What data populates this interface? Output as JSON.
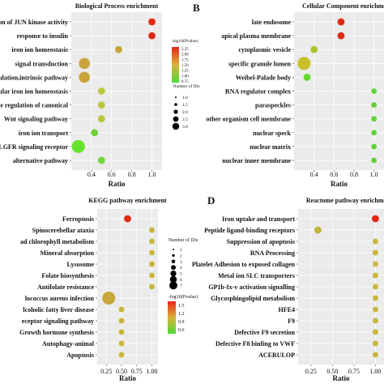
{
  "chart_data": [
    {
      "type": "scatter",
      "panel_letter": "",
      "title": "Biological Process enrichment",
      "xlabel": "Ratio",
      "xlim": [
        0.2,
        1.1
      ],
      "xticks": [
        "0.4",
        "0.6",
        "0.8",
        "1.0"
      ],
      "xtick_values": [
        0.4,
        0.6,
        0.8,
        1.0
      ],
      "categories": [
        "ion of JUN kinase activity",
        "response to insulin",
        "iron ion homeostasis",
        "signal transduction",
        "ulation,intrinsic pathway",
        "ular iron ion homeostasis",
        "e regulation of canonical",
        "Wnt signaling pathway",
        "iron ion transport",
        "LGFR signaling receptor",
        "alternative pathway"
      ],
      "points": [
        {
          "x": 1.0,
          "size": 1,
          "color": "#e02a12"
        },
        {
          "x": 1.0,
          "size": 1,
          "color": "#e02a12"
        },
        {
          "x": 0.67,
          "size": 1,
          "color": "#c8a437"
        },
        {
          "x": 0.33,
          "size": 2,
          "color": "#c9a43a"
        },
        {
          "x": 0.33,
          "size": 2,
          "color": "#c9a43a"
        },
        {
          "x": 0.5,
          "size": 1,
          "color": "#b9c73a"
        },
        {
          "x": 0.5,
          "size": 1,
          "color": "#b9c73a"
        },
        {
          "x": 0.5,
          "size": 1,
          "color": "#b9c73a"
        },
        {
          "x": 0.43,
          "size": 1,
          "color": "#6fd136"
        },
        {
          "x": 0.27,
          "size": 2.5,
          "color": "#66e22c"
        },
        {
          "x": 0.5,
          "size": 1,
          "color": "#73d83a"
        }
      ],
      "legend": {
        "color_title": "-log10(Pvalue)",
        "color_ticks": [
          "2.25",
          "2.00",
          "1.75",
          "1.50",
          "1.25",
          "1.00",
          "0.75"
        ],
        "size_title": "Number of IDs",
        "size_labels": [
          "1.0",
          "1.5",
          "2.0",
          "2.5",
          "3.0"
        ]
      }
    },
    {
      "type": "scatter",
      "panel_letter": "B",
      "title": "Cellular Component enrichment",
      "xlabel": "Ratio",
      "xlim": [
        0.2,
        1.1
      ],
      "xticks": [
        "0.4",
        "0.6",
        "0.8",
        "1.0"
      ],
      "xtick_values": [
        0.4,
        0.6,
        0.8,
        1.0
      ],
      "categories": [
        "late endosome",
        "apical plasma membrane",
        "cytoplasmic vesicle",
        "specific granule lumen",
        "Weibel-Palade body",
        "RNA regulator complex",
        "paraspeckles",
        "other organism cell membrane",
        "nuclear speck",
        "nuclear matrix",
        "nuclear inner membrane"
      ],
      "points": [
        {
          "x": 0.67,
          "size": 1,
          "color": "#e02a12"
        },
        {
          "x": 0.67,
          "size": 1,
          "color": "#e02a12"
        },
        {
          "x": 0.4,
          "size": 1,
          "color": "#a9c52f"
        },
        {
          "x": 0.3,
          "size": 2.5,
          "color": "#c8bf2a"
        },
        {
          "x": 0.33,
          "size": 1,
          "color": "#62d72d"
        },
        {
          "x": 1.0,
          "size": 0.6,
          "color": "#5fd43a"
        },
        {
          "x": 1.0,
          "size": 0.6,
          "color": "#5fd43a"
        },
        {
          "x": 1.0,
          "size": 0.6,
          "color": "#5fd43a"
        },
        {
          "x": 1.0,
          "size": 0.6,
          "color": "#5fd43a"
        },
        {
          "x": 1.0,
          "size": 0.6,
          "color": "#5fd43a"
        },
        {
          "x": 1.0,
          "size": 0.6,
          "color": "#5fd43a"
        }
      ]
    },
    {
      "type": "scatter",
      "panel_letter": "",
      "title": "KEGG pathway enrichment",
      "xlabel": "Ratio",
      "xlim": [
        0.1,
        1.1
      ],
      "xticks": [
        "0.25",
        "0.50",
        "0.75",
        "1.00"
      ],
      "xtick_values": [
        0.25,
        0.5,
        0.75,
        1.0
      ],
      "categories": [
        "Ferroptosis",
        "Spinocerebellar ataxia",
        "ad chlorophyll metabolism",
        "Mineral absorption",
        "Lysosome",
        "Folate biosynthesis",
        "Antifolate resistance",
        "lococcus aureus infection",
        "lcoholic fatty liver disease",
        "eceptor signaling pathway",
        "Growth hormone synthesis",
        "Autophagy-animal",
        "Apoptosis"
      ],
      "points": [
        {
          "x": 0.6,
          "size": 1,
          "color": "#e02a12"
        },
        {
          "x": 1.0,
          "size": 0.6,
          "color": "#c8b53a"
        },
        {
          "x": 1.0,
          "size": 0.6,
          "color": "#c8b53a"
        },
        {
          "x": 1.0,
          "size": 0.6,
          "color": "#c8b53a"
        },
        {
          "x": 1.0,
          "size": 0.6,
          "color": "#c8b53a"
        },
        {
          "x": 1.0,
          "size": 0.6,
          "color": "#c8b53a"
        },
        {
          "x": 1.0,
          "size": 0.6,
          "color": "#c8b53a"
        },
        {
          "x": 0.29,
          "size": 2.5,
          "color": "#c9a63a"
        },
        {
          "x": 0.5,
          "size": 0.6,
          "color": "#c8b53a"
        },
        {
          "x": 0.5,
          "size": 0.6,
          "color": "#c8b53a"
        },
        {
          "x": 0.5,
          "size": 0.6,
          "color": "#c8b53a"
        },
        {
          "x": 0.5,
          "size": 0.6,
          "color": "#c8b53a"
        },
        {
          "x": 0.5,
          "size": 0.6,
          "color": "#c8b53a"
        }
      ],
      "legend": {
        "size_title": "Number of IDs",
        "size_labels": [
          "1",
          "2",
          "3",
          "4",
          "5",
          "6",
          "7"
        ],
        "color_title": "-log10(Pvalue)",
        "color_ticks": [
          "1.5",
          "1.2",
          "0.9",
          "0.6"
        ]
      }
    },
    {
      "type": "scatter",
      "panel_letter": "D",
      "title": "Reactome pathway enrichment",
      "xlabel": "Ratio",
      "xlim": [
        0.1,
        1.1
      ],
      "xticks": [
        "0.25",
        "0.50",
        "0.75",
        "1.00"
      ],
      "xtick_values": [
        0.25,
        0.5,
        0.75,
        1.0
      ],
      "categories": [
        "Iron uptake and transport",
        "Peptide ligand-binding receptors",
        "Suppression of apoptosis",
        "RNA Processing",
        "Platelet Adhesion to exposed collagen",
        "Metal ion SLC transporters",
        "GP1b-Ix-v activation signalling",
        "Glycosphingolipid metabolism",
        "HFE4",
        "F9",
        "Defective F9 secretion",
        "Defective F8 binfing to VWF",
        "ACERULOP"
      ],
      "points": [
        {
          "x": 1.0,
          "size": 1,
          "color": "#e02a12"
        },
        {
          "x": 0.33,
          "size": 1,
          "color": "#c0b43a"
        },
        {
          "x": 1.0,
          "size": 0.6,
          "color": "#c8b53a"
        },
        {
          "x": 1.0,
          "size": 0.6,
          "color": "#c8b53a"
        },
        {
          "x": 1.0,
          "size": 0.6,
          "color": "#c8b53a"
        },
        {
          "x": 1.0,
          "size": 0.6,
          "color": "#c8b53a"
        },
        {
          "x": 1.0,
          "size": 0.6,
          "color": "#c8b53a"
        },
        {
          "x": 1.0,
          "size": 0.6,
          "color": "#c8b53a"
        },
        {
          "x": 1.0,
          "size": 0.6,
          "color": "#c8b53a"
        },
        {
          "x": 1.0,
          "size": 0.6,
          "color": "#c8b53a"
        },
        {
          "x": 1.0,
          "size": 0.6,
          "color": "#c8b53a"
        },
        {
          "x": 1.0,
          "size": 0.6,
          "color": "#c8b53a"
        },
        {
          "x": 1.0,
          "size": 0.6,
          "color": "#c8b53a"
        }
      ]
    }
  ]
}
